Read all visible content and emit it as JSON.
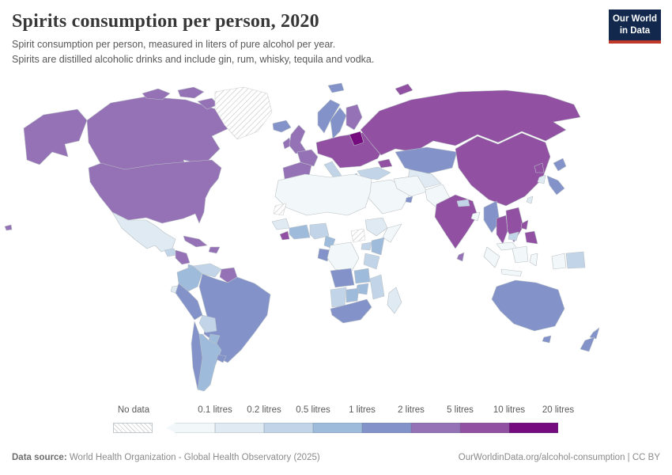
{
  "header": {
    "title": "Spirits consumption per person, 2020",
    "subtitle_line1": "Spirit consumption per person, measured in liters of pure alcohol per year.",
    "subtitle_line2": "Spirits are distilled alcoholic drinks and include gin, rum, whisky, tequila and vodka.",
    "logo": {
      "line1": "Our World",
      "line2": "in Data",
      "bg_color": "#12294d",
      "accent_color": "#c0392b"
    }
  },
  "legend": {
    "no_data_label": "No data"
  },
  "chart_data": {
    "type": "heatmap",
    "subtype": "choropleth-world-map",
    "title": "Spirits consumption per person, 2020",
    "unit": "liters of pure alcohol per year",
    "year": 2020,
    "legend_position": "bottom",
    "no_data_pattern": "diagonal-hatch",
    "bins": [
      {
        "label": "0.1 litres",
        "range": "<0.1",
        "color": "#f2f8f9"
      },
      {
        "label": "0.2 litres",
        "range": "0.1-0.2",
        "color": "#dfeaf2"
      },
      {
        "label": "0.5 litres",
        "range": "0.2-0.5",
        "color": "#c2d5e8"
      },
      {
        "label": "1 litres",
        "range": "0.5-1",
        "color": "#9fbbdb"
      },
      {
        "label": "2 litres",
        "range": "1-2",
        "color": "#8393c9"
      },
      {
        "label": "5 litres",
        "range": "2-5",
        "color": "#9571b6"
      },
      {
        "label": "10 litres",
        "range": "5-10",
        "color": "#9150a2"
      },
      {
        "label": "20 litres",
        "range": "10-20",
        "color": "#750b7e"
      }
    ],
    "values": {
      "United States": "2-5",
      "Canada": "2-5",
      "Greenland": "no-data",
      "Iceland": "1-2",
      "Mexico": "0.1-0.2",
      "Guatemala": "0.2-0.5",
      "Honduras": "2-5",
      "Panama": "0.5-1",
      "Cuba": "2-5",
      "Dominican Republic": "2-5",
      "Colombia": "0.5-1",
      "Venezuela": "0.2-0.5",
      "Guyana": "2-5",
      "Brazil": "1-2",
      "Ecuador": "0.1-0.2",
      "Peru": "1-2",
      "Bolivia": "0.2-0.5",
      "Paraguay": "0.5-1",
      "Chile": "1-2",
      "Argentina": "0.5-1",
      "Uruguay": "1-2",
      "United Kingdom": "2-5",
      "Ireland": "2-5",
      "Norway": "1-2",
      "Sweden": "1-2",
      "Finland": "2-5",
      "Denmark": "1-2",
      "Baltic States": "10-20",
      "Spain": "2-5",
      "France": "2-5",
      "Central and Eastern Europe": "5-10",
      "Italy": "0.2-0.5",
      "Greece": "0.5-1",
      "Russia": "5-10",
      "Svalbard": "1-2",
      "Novaya Zemlya": "5-10",
      "Kazakhstan": "1-2",
      "Uzbekistan": "0.1-0.2",
      "Georgia": "5-10",
      "Turkey": "0.2-0.5",
      "Saudi Arabia": "<0.1",
      "United Arab Emirates": "1-2",
      "Iran": "<0.1",
      "Pakistan": "<0.1",
      "India": "5-10",
      "Nepal": "0.2-0.5",
      "Bangladesh": "<0.1",
      "Sri Lanka": "2-5",
      "China": "5-10",
      "Myanmar": "1-2",
      "Thailand": "5-10",
      "Vietnam": "5-10",
      "Cambodia": "0.2-0.5",
      "Malaysia": "<0.1",
      "Indonesia": "<0.1",
      "Papua New Guinea": "0.2-0.5",
      "Philippines": "5-10",
      "Japan": "1-2",
      "South Korea": "0.1-0.2",
      "North Korea": "5-10",
      "Taiwan": "0.1-0.2",
      "Northern Africa": "<0.1",
      "Western Sahara": "no-data",
      "Senegal": "0.1-0.2",
      "Liberia": "5-10",
      "Ghana": "0.5-1",
      "Nigeria": "0.2-0.5",
      "Cameroon": "0.5-1",
      "Gabon": "1-2",
      "Democratic Republic of Congo": "<0.1",
      "Ethiopia": "0.1-0.2",
      "Somalia": "<0.1",
      "South Sudan": "no-data",
      "Uganda": "0.2-0.5",
      "Kenya": "0.5-1",
      "Tanzania": "0.2-0.5",
      "Angola": "1-2",
      "Zambia": "0.5-1",
      "Mozambique": "0.2-0.5",
      "Zimbabwe": "0.5-1",
      "Namibia": "0.2-0.5",
      "Botswana": "0.5-1",
      "South Africa": "1-2",
      "Madagascar": "0.1-0.2",
      "Australia": "1-2",
      "New Zealand": "1-2"
    }
  },
  "footer": {
    "datasource_label": "Data source:",
    "datasource_value": " World Health Organization - Global Health Observatory (2025)",
    "credit": "OurWorldinData.org/alcohol-consumption | CC BY"
  }
}
